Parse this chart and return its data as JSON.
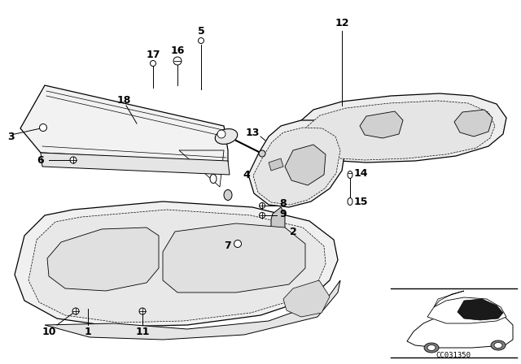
{
  "bg_color": "#ffffff",
  "line_color": "#000000",
  "diagram_code": "CC031350"
}
